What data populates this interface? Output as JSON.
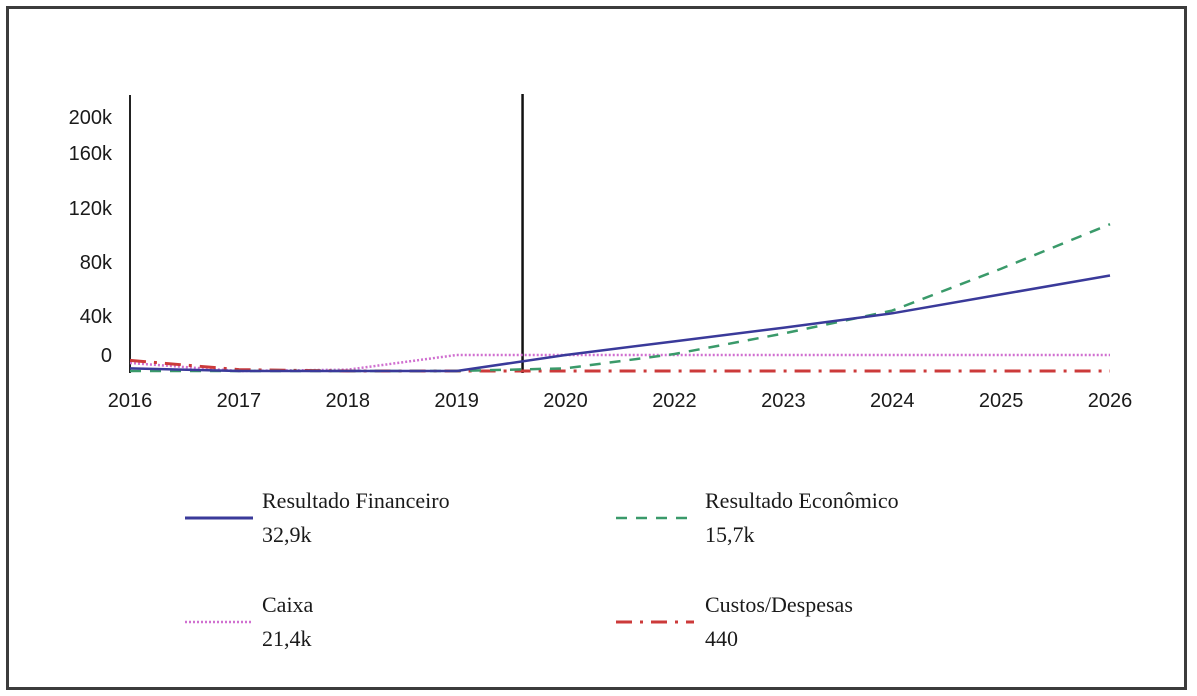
{
  "chart_data": {
    "type": "line",
    "title": "",
    "xlabel": "",
    "ylabel": "",
    "x": [
      "2016",
      "2017",
      "2018",
      "2019",
      "2020",
      "2022",
      "2023",
      "2024",
      "2025",
      "2026"
    ],
    "y_ticks": [
      {
        "value": 0,
        "label": "0"
      },
      {
        "value": 40000,
        "label": "40k"
      },
      {
        "value": 80000,
        "label": "80k"
      },
      {
        "value": 120000,
        "label": "120k"
      },
      {
        "value": 160000,
        "label": "160k"
      },
      {
        "value": 200000,
        "label": "200k"
      }
    ],
    "ylim": [
      -12000,
      200000
    ],
    "marker_x": "2020",
    "grid": false,
    "legend_position": "bottom",
    "series": [
      {
        "name": "Resultado Financeiro",
        "legend_value": "32,9k",
        "color": "#3a3a9a",
        "style": "solid",
        "values": [
          -10000,
          -12000,
          -12000,
          -12000,
          0,
          14000,
          28000,
          42000,
          56000,
          70000
        ]
      },
      {
        "name": "Resultado Econômico",
        "legend_value": "15,7k",
        "color": "#3a9a6a",
        "style": "dashed",
        "values": [
          -12000,
          -12000,
          -12000,
          -12000,
          -10000,
          1000,
          22000,
          44000,
          75000,
          108000
        ]
      },
      {
        "name": "Caixa",
        "legend_value": "21,4k",
        "color": "#d070d0",
        "style": "dotted",
        "values": [
          -6000,
          -12000,
          -11000,
          0,
          0,
          0,
          0,
          0,
          0,
          0
        ]
      },
      {
        "name": "Custos/Despesas",
        "legend_value": "440",
        "color": "#cc3a3a",
        "style": "dashdot",
        "values": [
          -4000,
          -11000,
          -12000,
          -12000,
          -12000,
          -12000,
          -12000,
          -12000,
          -12000,
          -12000
        ]
      }
    ]
  }
}
